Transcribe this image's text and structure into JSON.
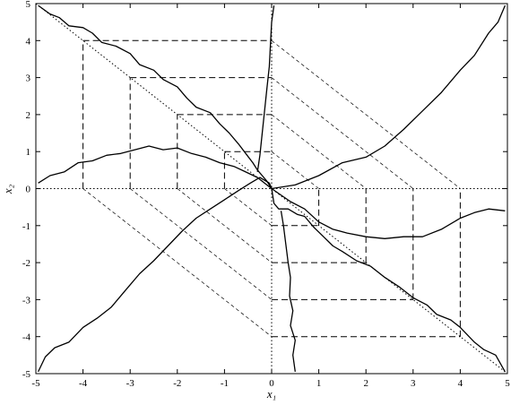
{
  "chart_data": {
    "type": "line",
    "title": "",
    "xlabel": "x₁",
    "ylabel": "x₂",
    "xlim": [
      -5,
      5
    ],
    "ylim": [
      -5,
      5
    ],
    "xticks": [
      "-5",
      "-4",
      "-3",
      "-2",
      "-1",
      "0",
      "1",
      "2",
      "3",
      "4",
      "5"
    ],
    "yticks": [
      "-5",
      "-4",
      "-3",
      "-2",
      "-1",
      "0",
      "1",
      "2",
      "3",
      "4",
      "5"
    ],
    "grid": false,
    "legend": "none",
    "colors": {
      "foreground": "#000000",
      "background": "#ffffff"
    },
    "series": [
      {
        "style": "solid",
        "points": [
          [
            -4.95,
            4.95
          ],
          [
            -4.7,
            4.72
          ],
          [
            -4.5,
            4.62
          ],
          [
            -4.3,
            4.4
          ],
          [
            -4.0,
            4.35
          ],
          [
            -3.8,
            4.2
          ],
          [
            -3.6,
            3.95
          ],
          [
            -3.3,
            3.85
          ],
          [
            -3.0,
            3.65
          ],
          [
            -2.8,
            3.35
          ],
          [
            -2.5,
            3.2
          ],
          [
            -2.3,
            2.95
          ],
          [
            -2.0,
            2.75
          ],
          [
            -1.8,
            2.45
          ],
          [
            -1.6,
            2.2
          ],
          [
            -1.3,
            2.05
          ],
          [
            -1.1,
            1.75
          ],
          [
            -0.9,
            1.5
          ],
          [
            -0.7,
            1.2
          ],
          [
            -0.55,
            0.95
          ],
          [
            -0.4,
            0.7
          ],
          [
            -0.3,
            0.5
          ],
          [
            -0.2,
            0.35
          ],
          [
            -0.1,
            0.2
          ],
          [
            0.0,
            0.0
          ]
        ]
      },
      {
        "style": "solid",
        "points": [
          [
            -4.95,
            -4.95
          ],
          [
            -4.8,
            -4.55
          ],
          [
            -4.6,
            -4.3
          ],
          [
            -4.3,
            -4.15
          ],
          [
            -4.0,
            -3.75
          ],
          [
            -3.7,
            -3.5
          ],
          [
            -3.4,
            -3.2
          ],
          [
            -3.1,
            -2.75
          ],
          [
            -2.8,
            -2.3
          ],
          [
            -2.5,
            -1.95
          ],
          [
            -2.2,
            -1.55
          ],
          [
            -1.9,
            -1.15
          ],
          [
            -1.6,
            -0.8
          ],
          [
            -1.3,
            -0.55
          ],
          [
            -1.0,
            -0.3
          ],
          [
            -0.7,
            -0.05
          ],
          [
            -0.45,
            0.15
          ],
          [
            -0.25,
            0.3
          ],
          [
            -0.05,
            0.15
          ],
          [
            0.0,
            0.0
          ]
        ]
      },
      {
        "style": "solid",
        "points": [
          [
            -4.95,
            0.15
          ],
          [
            -4.7,
            0.35
          ],
          [
            -4.4,
            0.45
          ],
          [
            -4.1,
            0.7
          ],
          [
            -3.8,
            0.75
          ],
          [
            -3.5,
            0.9
          ],
          [
            -3.2,
            0.95
          ],
          [
            -2.9,
            1.05
          ],
          [
            -2.6,
            1.15
          ],
          [
            -2.3,
            1.05
          ],
          [
            -2.0,
            1.1
          ],
          [
            -1.7,
            0.95
          ],
          [
            -1.4,
            0.85
          ],
          [
            -1.1,
            0.7
          ],
          [
            -0.8,
            0.6
          ],
          [
            -0.55,
            0.45
          ],
          [
            -0.3,
            0.3
          ],
          [
            -0.1,
            0.1
          ],
          [
            0.0,
            0.0
          ]
        ]
      },
      {
        "style": "solid",
        "points": [
          [
            -0.3,
            0.45
          ],
          [
            -0.25,
            0.9
          ],
          [
            -0.2,
            1.5
          ],
          [
            -0.15,
            2.1
          ],
          [
            -0.1,
            2.7
          ],
          [
            -0.05,
            3.3
          ],
          [
            -0.02,
            4.0
          ],
          [
            0.0,
            4.5
          ],
          [
            0.05,
            4.95
          ]
        ]
      },
      {
        "style": "solid",
        "points": [
          [
            0.0,
            0.0
          ],
          [
            0.05,
            -0.4
          ],
          [
            0.15,
            -0.55
          ],
          [
            0.35,
            -0.55
          ],
          [
            0.55,
            -0.7
          ],
          [
            0.7,
            -0.75
          ],
          [
            0.9,
            -1.05
          ],
          [
            1.1,
            -1.3
          ],
          [
            1.3,
            -1.55
          ],
          [
            1.5,
            -1.7
          ],
          [
            1.8,
            -1.95
          ],
          [
            2.1,
            -2.1
          ],
          [
            2.4,
            -2.4
          ],
          [
            2.7,
            -2.65
          ],
          [
            3.0,
            -2.95
          ],
          [
            3.3,
            -3.15
          ],
          [
            3.5,
            -3.4
          ],
          [
            3.8,
            -3.55
          ],
          [
            4.0,
            -3.75
          ],
          [
            4.3,
            -4.15
          ],
          [
            4.5,
            -4.35
          ],
          [
            4.75,
            -4.5
          ],
          [
            4.95,
            -4.95
          ]
        ]
      },
      {
        "style": "solid",
        "points": [
          [
            0.0,
            0.0
          ],
          [
            0.4,
            -0.35
          ],
          [
            0.7,
            -0.55
          ],
          [
            1.0,
            -0.9
          ],
          [
            1.3,
            -1.1
          ],
          [
            1.6,
            -1.2
          ],
          [
            2.0,
            -1.3
          ],
          [
            2.4,
            -1.35
          ],
          [
            2.8,
            -1.3
          ],
          [
            3.2,
            -1.3
          ],
          [
            3.6,
            -1.1
          ],
          [
            4.0,
            -0.8
          ],
          [
            4.3,
            -0.65
          ],
          [
            4.6,
            -0.55
          ],
          [
            4.95,
            -0.6
          ]
        ]
      },
      {
        "style": "solid",
        "points": [
          [
            0.0,
            0.0
          ],
          [
            0.5,
            0.1
          ],
          [
            1.0,
            0.35
          ],
          [
            1.5,
            0.7
          ],
          [
            2.0,
            0.85
          ],
          [
            2.4,
            1.15
          ],
          [
            2.8,
            1.6
          ],
          [
            3.2,
            2.1
          ],
          [
            3.6,
            2.6
          ],
          [
            4.0,
            3.2
          ],
          [
            4.3,
            3.6
          ],
          [
            4.6,
            4.2
          ],
          [
            4.8,
            4.5
          ],
          [
            4.95,
            4.95
          ]
        ]
      },
      {
        "style": "solid",
        "points": [
          [
            0.2,
            -0.6
          ],
          [
            0.25,
            -1.0
          ],
          [
            0.3,
            -1.5
          ],
          [
            0.35,
            -2.0
          ],
          [
            0.4,
            -2.4
          ],
          [
            0.38,
            -2.9
          ],
          [
            0.45,
            -3.3
          ],
          [
            0.4,
            -3.7
          ],
          [
            0.5,
            -4.1
          ],
          [
            0.45,
            -4.5
          ],
          [
            0.5,
            -4.95
          ]
        ]
      },
      {
        "style": "dashed",
        "points": [
          [
            -4,
            4
          ],
          [
            0,
            4
          ]
        ]
      },
      {
        "style": "dashed",
        "points": [
          [
            -4,
            0
          ],
          [
            -4,
            4
          ]
        ]
      },
      {
        "style": "dashed",
        "points": [
          [
            -3,
            3
          ],
          [
            0,
            3
          ]
        ]
      },
      {
        "style": "dashed",
        "points": [
          [
            -3,
            0
          ],
          [
            -3,
            3
          ]
        ]
      },
      {
        "style": "dashed",
        "points": [
          [
            -2,
            2
          ],
          [
            0,
            2
          ]
        ]
      },
      {
        "style": "dashed",
        "points": [
          [
            -2,
            0
          ],
          [
            -2,
            2
          ]
        ]
      },
      {
        "style": "dashed",
        "points": [
          [
            -1,
            1
          ],
          [
            0,
            1
          ]
        ]
      },
      {
        "style": "dashed",
        "points": [
          [
            -1,
            0
          ],
          [
            -1,
            1
          ]
        ]
      },
      {
        "style": "dashed",
        "points": [
          [
            0,
            -4
          ],
          [
            4,
            -4
          ]
        ]
      },
      {
        "style": "dashed",
        "points": [
          [
            4,
            -4
          ],
          [
            4,
            0
          ]
        ]
      },
      {
        "style": "dashed",
        "points": [
          [
            0,
            -3
          ],
          [
            3,
            -3
          ]
        ]
      },
      {
        "style": "dashed",
        "points": [
          [
            3,
            -3
          ],
          [
            3,
            0
          ]
        ]
      },
      {
        "style": "dashed",
        "points": [
          [
            0,
            -2
          ],
          [
            2,
            -2
          ]
        ]
      },
      {
        "style": "dashed",
        "points": [
          [
            2,
            -2
          ],
          [
            2,
            0
          ]
        ]
      },
      {
        "style": "dashed",
        "points": [
          [
            0,
            -1
          ],
          [
            1,
            -1
          ]
        ]
      },
      {
        "style": "dashed",
        "points": [
          [
            1,
            -1
          ],
          [
            1,
            0
          ]
        ]
      },
      {
        "style": "thin-dashed",
        "points": [
          [
            0,
            4
          ],
          [
            4,
            0
          ]
        ]
      },
      {
        "style": "thin-dashed",
        "points": [
          [
            0,
            3
          ],
          [
            3,
            0
          ]
        ]
      },
      {
        "style": "thin-dashed",
        "points": [
          [
            0,
            2
          ],
          [
            2,
            0
          ]
        ]
      },
      {
        "style": "thin-dashed",
        "points": [
          [
            0,
            1
          ],
          [
            1,
            0
          ]
        ]
      },
      {
        "style": "thin-dashed",
        "points": [
          [
            -4,
            0
          ],
          [
            0,
            -4
          ]
        ]
      },
      {
        "style": "thin-dashed",
        "points": [
          [
            -3,
            0
          ],
          [
            0,
            -3
          ]
        ]
      },
      {
        "style": "thin-dashed",
        "points": [
          [
            -2,
            0
          ],
          [
            0,
            -2
          ]
        ]
      },
      {
        "style": "thin-dashed",
        "points": [
          [
            -1,
            0
          ],
          [
            0,
            -1
          ]
        ]
      },
      {
        "style": "dotted",
        "points": [
          [
            -5,
            0
          ],
          [
            5,
            0
          ]
        ]
      },
      {
        "style": "dotted",
        "points": [
          [
            0,
            -5
          ],
          [
            0,
            5
          ]
        ]
      },
      {
        "style": "dotted",
        "points": [
          [
            -5,
            5
          ],
          [
            5,
            -5
          ]
        ]
      }
    ]
  }
}
